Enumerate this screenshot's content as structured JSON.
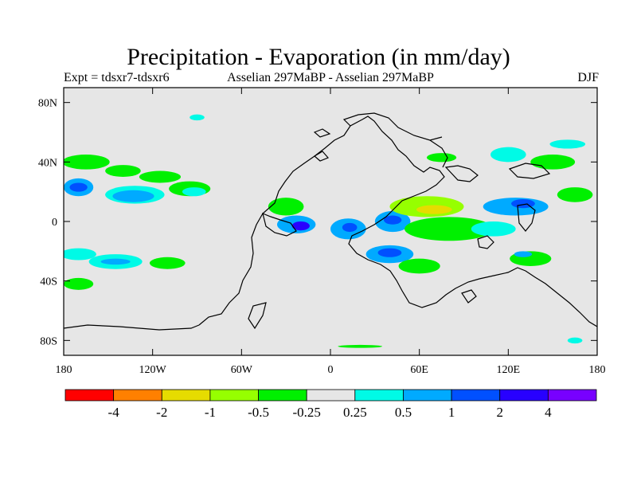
{
  "title": "Precipitation - Evaporation (in mm/day)",
  "subtitle_left": "Expt = tdsxr7-tdsxr6",
  "subtitle_center": "Asselian 297MaBP - Asselian 297MaBP",
  "subtitle_right": "DJF",
  "map": {
    "background_color": "#e6e6e6",
    "projection": "cylindrical equidistant",
    "lon_range": [
      -180,
      180
    ],
    "lat_range": [
      -90,
      90
    ],
    "y_ticks": [
      {
        "lat": 80,
        "label": "80N"
      },
      {
        "lat": 40,
        "label": "40N"
      },
      {
        "lat": 0,
        "label": "0"
      },
      {
        "lat": -40,
        "label": "40S"
      },
      {
        "lat": -80,
        "label": "80S"
      }
    ],
    "x_ticks": [
      {
        "lon": -180,
        "label": "180"
      },
      {
        "lon": -120,
        "label": "120W"
      },
      {
        "lon": -60,
        "label": "60W"
      },
      {
        "lon": 0,
        "label": "0"
      },
      {
        "lon": 60,
        "label": "60E"
      },
      {
        "lon": 120,
        "label": "120E"
      },
      {
        "lon": 180,
        "label": "180"
      }
    ]
  },
  "chart_data": {
    "type": "heatmap",
    "title": "Precipitation - Evaporation (in mm/day)",
    "units": "mm/day",
    "season": "DJF",
    "xlabel": "",
    "ylabel": "",
    "x_range": [
      -180,
      180
    ],
    "y_range": [
      -90,
      90
    ],
    "contour_levels": [
      -4,
      -2,
      -1,
      -0.5,
      -0.25,
      0.25,
      0.5,
      1,
      2,
      4
    ],
    "colorbar_colors": [
      "#ff0000",
      "#ff8000",
      "#e6dc00",
      "#96ff00",
      "#00f000",
      "#e6e6e6",
      "#00fae6",
      "#00aaff",
      "#0050ff",
      "#2800ff",
      "#7800ff"
    ],
    "colorbar_labels": [
      "-4",
      "-2",
      "-1",
      "-0.5",
      "-0.25",
      "0.25",
      "0.5",
      "1",
      "2",
      "4"
    ],
    "regions": [
      {
        "lon": -165,
        "lat": 40,
        "rx": 16,
        "ry": 5,
        "class": "-0.5 to -0.25"
      },
      {
        "lon": -140,
        "lat": 34,
        "rx": 12,
        "ry": 4,
        "class": "-0.5 to -0.25"
      },
      {
        "lon": -115,
        "lat": 30,
        "rx": 14,
        "ry": 4,
        "class": "-0.5 to -0.25"
      },
      {
        "lon": -170,
        "lat": 23,
        "rx": 10,
        "ry": 6,
        "class": "0.5 to 1"
      },
      {
        "lon": -170,
        "lat": 23,
        "rx": 6,
        "ry": 3,
        "class": "1 to 2"
      },
      {
        "lon": -132,
        "lat": 18,
        "rx": 20,
        "ry": 6,
        "class": "0.25 to 0.5"
      },
      {
        "lon": -133,
        "lat": 17,
        "rx": 14,
        "ry": 4,
        "class": "0.5 to 1"
      },
      {
        "lon": -95,
        "lat": 22,
        "rx": 14,
        "ry": 5,
        "class": "-0.5 to -0.25"
      },
      {
        "lon": -92,
        "lat": 20,
        "rx": 8,
        "ry": 3,
        "class": "0.25 to 0.5"
      },
      {
        "lon": -170,
        "lat": -22,
        "rx": 12,
        "ry": 4,
        "class": "0.25 to 0.5"
      },
      {
        "lon": -145,
        "lat": -27,
        "rx": 18,
        "ry": 5,
        "class": "0.25 to 0.5"
      },
      {
        "lon": -145,
        "lat": -27,
        "rx": 10,
        "ry": 2,
        "class": "0.5 to 1"
      },
      {
        "lon": -110,
        "lat": -28,
        "rx": 12,
        "ry": 4,
        "class": "-0.5 to -0.25"
      },
      {
        "lon": -170,
        "lat": -42,
        "rx": 10,
        "ry": 4,
        "class": "-0.5 to -0.25"
      },
      {
        "lon": -30,
        "lat": 10,
        "rx": 12,
        "ry": 6,
        "class": "-0.5 to -0.25"
      },
      {
        "lon": -23,
        "lat": -2,
        "rx": 13,
        "ry": 6,
        "class": "0.5 to 1"
      },
      {
        "lon": -20,
        "lat": -3,
        "rx": 6,
        "ry": 3,
        "class": "2 to 4"
      },
      {
        "lon": 12,
        "lat": -5,
        "rx": 12,
        "ry": 7,
        "class": "0.5 to 1"
      },
      {
        "lon": 13,
        "lat": -4,
        "rx": 5,
        "ry": 3,
        "class": "1 to 2"
      },
      {
        "lon": 42,
        "lat": 0,
        "rx": 12,
        "ry": 7,
        "class": "0.5 to 1"
      },
      {
        "lon": 42,
        "lat": 1,
        "rx": 6,
        "ry": 3,
        "class": "1 to 2"
      },
      {
        "lon": 65,
        "lat": 10,
        "rx": 25,
        "ry": 7,
        "class": "-1 to -0.5"
      },
      {
        "lon": 70,
        "lat": 8,
        "rx": 12,
        "ry": 3,
        "class": "-2 to -1"
      },
      {
        "lon": 80,
        "lat": -5,
        "rx": 30,
        "ry": 8,
        "class": "-0.5 to -0.25"
      },
      {
        "lon": 40,
        "lat": -22,
        "rx": 16,
        "ry": 6,
        "class": "0.5 to 1"
      },
      {
        "lon": 40,
        "lat": -21,
        "rx": 8,
        "ry": 3,
        "class": "1 to 2"
      },
      {
        "lon": 110,
        "lat": -5,
        "rx": 15,
        "ry": 5,
        "class": "0.25 to 0.5"
      },
      {
        "lon": 125,
        "lat": 10,
        "rx": 22,
        "ry": 6,
        "class": "0.5 to 1"
      },
      {
        "lon": 130,
        "lat": 12,
        "rx": 8,
        "ry": 3,
        "class": "1 to 2"
      },
      {
        "lon": 150,
        "lat": 40,
        "rx": 15,
        "ry": 5,
        "class": "-0.5 to -0.25"
      },
      {
        "lon": 165,
        "lat": 18,
        "rx": 12,
        "ry": 5,
        "class": "-0.5 to -0.25"
      },
      {
        "lon": 135,
        "lat": -25,
        "rx": 14,
        "ry": 5,
        "class": "-0.5 to -0.25"
      },
      {
        "lon": 130,
        "lat": -22,
        "rx": 6,
        "ry": 2,
        "class": "0.5 to 1"
      },
      {
        "lon": 60,
        "lat": -30,
        "rx": 14,
        "ry": 5,
        "class": "-0.5 to -0.25"
      },
      {
        "lon": 120,
        "lat": 45,
        "rx": 12,
        "ry": 5,
        "class": "0.25 to 0.5"
      },
      {
        "lon": 75,
        "lat": 43,
        "rx": 10,
        "ry": 3,
        "class": "-0.5 to -0.25"
      },
      {
        "lon": -90,
        "lat": 70,
        "rx": 5,
        "ry": 2,
        "class": "0.25 to 0.5"
      },
      {
        "lon": 160,
        "lat": 52,
        "rx": 12,
        "ry": 3,
        "class": "0.25 to 0.5"
      },
      {
        "lon": 20,
        "lat": -84,
        "rx": 15,
        "ry": 1,
        "class": "-0.5 to -0.25"
      },
      {
        "lon": 165,
        "lat": -80,
        "rx": 5,
        "ry": 2,
        "class": "0.25 to 0.5"
      }
    ]
  }
}
